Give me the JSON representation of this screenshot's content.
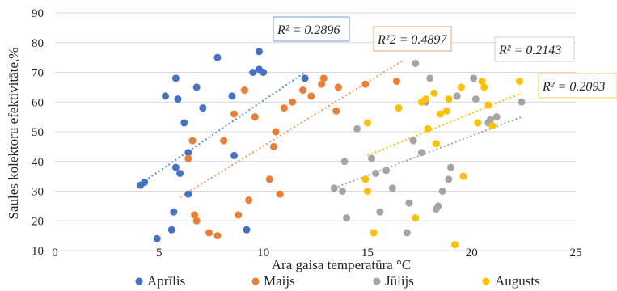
{
  "chart_data": {
    "type": "scatter",
    "xlabel": "Āra gaisa temperatūra °C",
    "ylabel": "Saules kolektoru efektivitāte,%",
    "xlim": [
      0,
      25
    ],
    "ylim": [
      10,
      90
    ],
    "xticks": [
      0,
      5,
      10,
      15,
      20,
      25
    ],
    "yticks": [
      10,
      20,
      30,
      40,
      50,
      60,
      70,
      80,
      90
    ],
    "grid": "horizontal",
    "legend_position": "bottom",
    "series": [
      {
        "name": "Aprīlis",
        "color": "#4472c4",
        "trend_color": "#5b8fd6",
        "r2_label": "R² = 0.2896",
        "r2_box_color": "#8eaadb",
        "trend_x": [
          4.0,
          12.0
        ],
        "trend_y": [
          32.0,
          70.0
        ],
        "points": [
          [
            4.1,
            32
          ],
          [
            4.3,
            33
          ],
          [
            4.9,
            14
          ],
          [
            5.3,
            62
          ],
          [
            5.6,
            17
          ],
          [
            5.7,
            23
          ],
          [
            5.8,
            38
          ],
          [
            5.8,
            68
          ],
          [
            5.9,
            61
          ],
          [
            6.0,
            36
          ],
          [
            6.2,
            53
          ],
          [
            6.4,
            43
          ],
          [
            6.4,
            29
          ],
          [
            6.8,
            65
          ],
          [
            7.1,
            58
          ],
          [
            7.8,
            75
          ],
          [
            8.5,
            62
          ],
          [
            8.6,
            42
          ],
          [
            9.2,
            17
          ],
          [
            9.5,
            70
          ],
          [
            9.8,
            77
          ],
          [
            9.8,
            71
          ],
          [
            10.0,
            70
          ],
          [
            12.0,
            68
          ]
        ]
      },
      {
        "name": "Maijs",
        "color": "#ed7d31",
        "trend_color": "#f0965a",
        "r2_label": "R²2 = 0.4897",
        "r2_box_color": "#f4b183",
        "trend_x": [
          6.0,
          16.7
        ],
        "trend_y": [
          28.0,
          74.0
        ],
        "points": [
          [
            6.4,
            41
          ],
          [
            6.6,
            47
          ],
          [
            6.7,
            22
          ],
          [
            6.8,
            20
          ],
          [
            7.4,
            16
          ],
          [
            7.8,
            15
          ],
          [
            8.1,
            47
          ],
          [
            8.6,
            56
          ],
          [
            8.8,
            22
          ],
          [
            9.1,
            64
          ],
          [
            9.3,
            27
          ],
          [
            9.6,
            55
          ],
          [
            10.3,
            34
          ],
          [
            10.5,
            45
          ],
          [
            10.6,
            50
          ],
          [
            10.8,
            29
          ],
          [
            11.0,
            58
          ],
          [
            11.4,
            60
          ],
          [
            11.9,
            64
          ],
          [
            12.3,
            62
          ],
          [
            12.8,
            66
          ],
          [
            12.9,
            68
          ],
          [
            13.5,
            57
          ],
          [
            13.6,
            65
          ],
          [
            14.9,
            66
          ],
          [
            16.4,
            67
          ]
        ]
      },
      {
        "name": "Jūlijs",
        "color": "#a5a5a5",
        "trend_color": "#a5a5a5",
        "r2_label": "R² = 0.2143",
        "r2_box_color": "#d9d9d9",
        "trend_x": [
          13.4,
          22.4
        ],
        "trend_y": [
          31.0,
          55.0
        ],
        "points": [
          [
            13.4,
            31
          ],
          [
            13.8,
            30
          ],
          [
            13.9,
            40
          ],
          [
            14.0,
            21
          ],
          [
            14.5,
            51
          ],
          [
            15.2,
            41
          ],
          [
            15.4,
            36
          ],
          [
            15.6,
            23
          ],
          [
            15.9,
            37
          ],
          [
            16.2,
            31
          ],
          [
            16.5,
            58
          ],
          [
            16.9,
            16
          ],
          [
            17.0,
            26
          ],
          [
            17.2,
            47
          ],
          [
            17.3,
            73
          ],
          [
            17.6,
            43
          ],
          [
            17.8,
            60
          ],
          [
            18.0,
            68
          ],
          [
            18.3,
            24
          ],
          [
            18.4,
            25
          ],
          [
            18.6,
            30
          ],
          [
            18.9,
            34
          ],
          [
            19.0,
            38
          ],
          [
            19.3,
            62
          ],
          [
            20.1,
            68
          ],
          [
            20.2,
            61
          ],
          [
            20.8,
            53
          ],
          [
            20.9,
            54
          ],
          [
            21.2,
            55
          ],
          [
            22.4,
            60
          ]
        ]
      },
      {
        "name": "Augusts",
        "color": "#ffc000",
        "trend_color": "#ffc000",
        "r2_label": "R² = 0.2093",
        "r2_box_color": "#ffd966",
        "trend_x": [
          15.0,
          22.4
        ],
        "trend_y": [
          42.0,
          63.0
        ],
        "points": [
          [
            14.9,
            34
          ],
          [
            15.0,
            30
          ],
          [
            15.3,
            16
          ],
          [
            15.0,
            53
          ],
          [
            16.5,
            58
          ],
          [
            17.3,
            21
          ],
          [
            17.6,
            60
          ],
          [
            17.8,
            61
          ],
          [
            17.9,
            51
          ],
          [
            18.2,
            63
          ],
          [
            18.3,
            46
          ],
          [
            18.5,
            56
          ],
          [
            18.8,
            57
          ],
          [
            18.9,
            61
          ],
          [
            19.2,
            12
          ],
          [
            19.5,
            65
          ],
          [
            19.6,
            35
          ],
          [
            20.3,
            53
          ],
          [
            20.5,
            67
          ],
          [
            20.6,
            65
          ],
          [
            20.8,
            59
          ],
          [
            21.0,
            52
          ],
          [
            22.3,
            67
          ]
        ]
      }
    ]
  }
}
